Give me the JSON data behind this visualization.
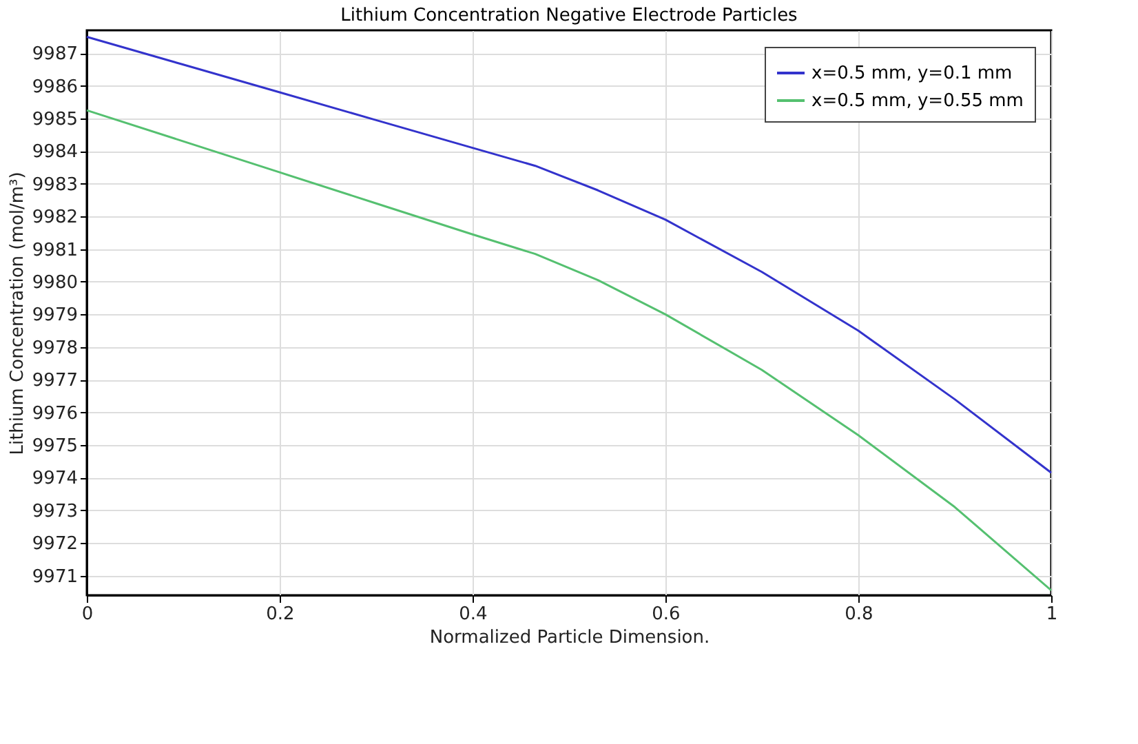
{
  "chart_data": {
    "type": "line",
    "title": "Lithium Concentration Negative Electrode Particles",
    "xlabel": "Normalized Particle Dimension.",
    "ylabel": "Lithium Concentration (mol/m³)",
    "x": [
      0,
      0.1,
      0.2,
      0.3,
      0.4,
      0.465,
      0.53,
      0.6,
      0.7,
      0.8,
      0.9,
      1.0
    ],
    "series": [
      {
        "name": "x=0.5 mm, y=0.1 mm",
        "color": "#3333cc",
        "values": [
          9987.5,
          9986.65,
          9985.8,
          9984.95,
          9984.1,
          9983.55,
          9982.8,
          9981.9,
          9980.3,
          9978.5,
          9976.4,
          9974.15
        ]
      },
      {
        "name": "x=0.5 mm, y=0.55 mm",
        "color": "#55c070",
        "values": [
          9985.25,
          9984.3,
          9983.35,
          9982.4,
          9981.45,
          9980.85,
          9980.05,
          9979.0,
          9977.3,
          9975.3,
          9973.1,
          9970.55
        ]
      }
    ],
    "xlim": [
      0,
      1
    ],
    "xticks": [
      0,
      0.2,
      0.4,
      0.6,
      0.8,
      1
    ],
    "ylim": [
      9970.4,
      9987.7
    ],
    "yticks": [
      9971,
      9972,
      9973,
      9974,
      9975,
      9976,
      9977,
      9978,
      9979,
      9980,
      9981,
      9982,
      9983,
      9984,
      9985,
      9986,
      9987
    ],
    "grid": true,
    "legend": "top right",
    "line_style": "solid",
    "marker": "none"
  }
}
